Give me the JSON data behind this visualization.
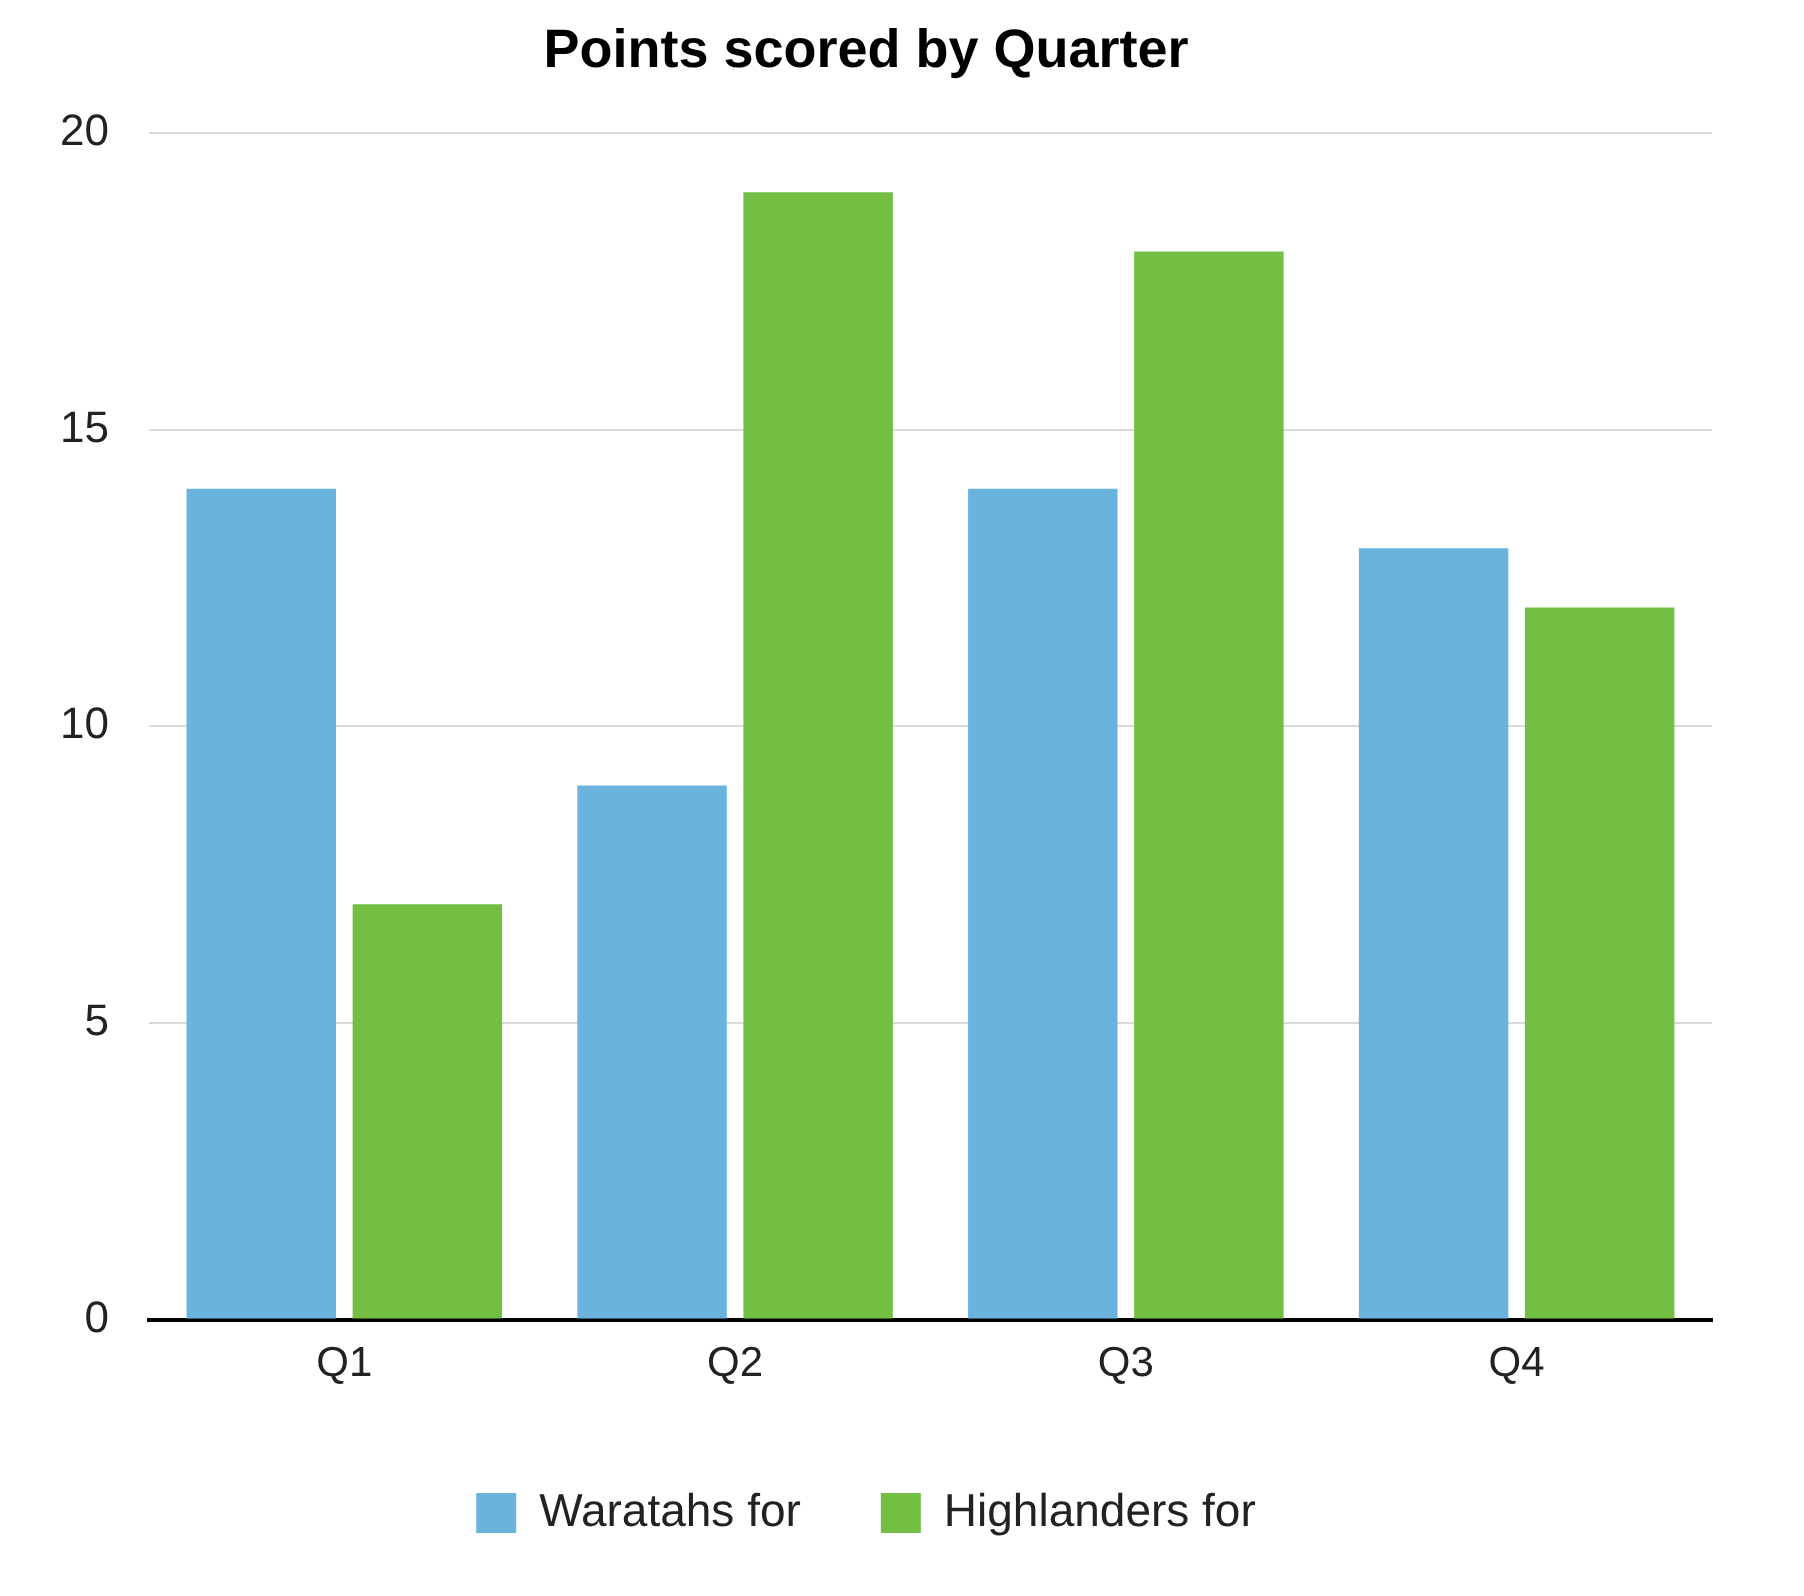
{
  "chart_data": {
    "type": "bar",
    "title": "Points scored by Quarter",
    "categories": [
      "Q1",
      "Q2",
      "Q3",
      "Q4"
    ],
    "series": [
      {
        "name": "Waratahs for",
        "color": "#69b3dd",
        "values": [
          14,
          9,
          14,
          13
        ]
      },
      {
        "name": "Highlanders for",
        "color": "#72bf44",
        "values": [
          7,
          19,
          18,
          12
        ]
      }
    ],
    "ylim": [
      0,
      20
    ],
    "yticks": [
      0,
      5,
      10,
      15,
      20
    ],
    "grid": "y",
    "legend": "bottom"
  }
}
